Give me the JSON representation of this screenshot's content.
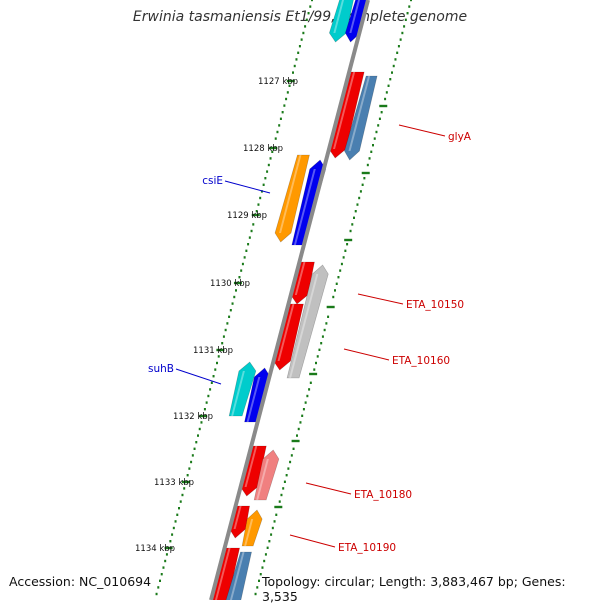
{
  "title": "Erwinia tasmaniensis Et1/99, complete genome",
  "accession": "Accession: NC_010694",
  "topology": "Topology: circular; Length: 3,883,467 bp; Genes: 3,535",
  "tick_labels": [
    "1127 kbp",
    "1128 kbp",
    "1129 kbp",
    "1130 kbp",
    "1131 kbp",
    "1132 kbp",
    "1133 kbp",
    "1134 kbp"
  ],
  "gene_labels": {
    "glyA": "glyA",
    "csiE": "csiE",
    "suhB": "suhB",
    "eta10150": "ETA_10150",
    "eta10160": "ETA_10160",
    "eta10180": "ETA_10180",
    "eta10190": "ETA_10190"
  },
  "colors": {
    "backbone": "#8c8c8c",
    "tick": "#1a7a1a",
    "label_red": "#cc0000",
    "label_blue": "#0000cc",
    "gene_red": "#ee0000",
    "gene_blue": "#0000ee",
    "gene_steel": "#4a7fb0",
    "gene_orange": "#ff9900",
    "gene_cyan": "#00cccc",
    "gene_gray": "#c0c0c0",
    "gene_pink": "#f08080"
  }
}
